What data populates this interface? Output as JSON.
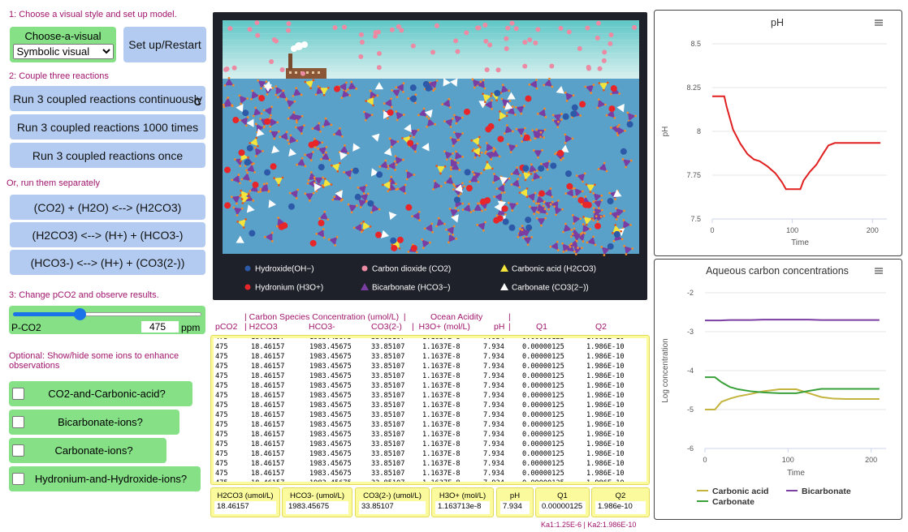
{
  "controls": {
    "step1": "1: Choose a visual style and set up model.",
    "chooser": {
      "label": "Choose-a-visual",
      "value": "Symbolic visual"
    },
    "setup_button": "Set up/Restart",
    "step2": "2: Couple three reactions",
    "coupled_buttons": [
      "Run 3 coupled reactions continuously",
      "Run 3 coupled reactions 1000 times",
      "Run 3 coupled reactions once"
    ],
    "continuous_shortcut": "C",
    "step_separate": "Or, run them separately",
    "reaction_buttons": [
      "(CO2) + (H2O) <--> (H2CO3)",
      "(H2CO3) <--> (H+) + (HCO3-)",
      "(HCO3-) <--> (H+) + (CO3(2-))"
    ],
    "step3": "3: Change pCO2 and observe results.",
    "slider": {
      "label": "P-CO2",
      "value": 475,
      "units": "ppm"
    },
    "optional_note": "Optional:  Show/hide some ions to enhance observations",
    "switches": [
      "CO2-and-Carbonic-acid?",
      "Bicarbonate-ions?",
      "Carbonate-ions?",
      "Hydronium-and-Hydroxide-ions?"
    ]
  },
  "view": {
    "legend": [
      "Hydroxide(OH−)",
      "Carbon dioxide (CO2)",
      "Carbonic acid (H2CO3)",
      "Hydronium (H3O+)",
      "Bicarbonate (HCO3−)",
      "Carbonate (CO3(2−))"
    ]
  },
  "output": {
    "header_line1": [
      "| Carbon Species Concentration (umol/L)  |",
      "Ocean Acidity",
      "|"
    ],
    "header_line2": [
      "pCO2",
      "| H2CO3",
      "HCO3-",
      "CO3(2-)",
      "|  H3O+ (mol/L)",
      "pH",
      "|",
      "Q1",
      "Q2"
    ],
    "rows": [
      [
        "475",
        "18.46157",
        "1983.45675",
        "33.85107",
        "1.1637E-8",
        "7.934",
        "0.00000125",
        "1.986E-10"
      ],
      [
        "475",
        "18.46157",
        "1983.45675",
        "33.85107",
        "1.1637E-8",
        "7.934",
        "0.00000125",
        "1.986E-10"
      ],
      [
        "475",
        "18.46157",
        "1983.45675",
        "33.85107",
        "1.1637E-8",
        "7.934",
        "0.00000125",
        "1.986E-10"
      ],
      [
        "475",
        "18.46157",
        "1983.45675",
        "33.85107",
        "1.1637E-8",
        "7.934",
        "0.00000125",
        "1.986E-10"
      ],
      [
        "475",
        "18.46157",
        "1983.45675",
        "33.85107",
        "1.1637E-8",
        "7.934",
        "0.00000125",
        "1.986E-10"
      ],
      [
        "475",
        "18.46157",
        "1983.45675",
        "33.85107",
        "1.1637E-8",
        "7.934",
        "0.00000125",
        "1.986E-10"
      ],
      [
        "475",
        "18.46157",
        "1983.45675",
        "33.85107",
        "1.1637E-8",
        "7.934",
        "0.00000125",
        "1.986E-10"
      ],
      [
        "475",
        "18.46157",
        "1983.45675",
        "33.85107",
        "1.1637E-8",
        "7.934",
        "0.00000125",
        "1.986E-10"
      ],
      [
        "475",
        "18.46157",
        "1983.45675",
        "33.85107",
        "1.1637E-8",
        "7.934",
        "0.00000125",
        "1.986E-10"
      ],
      [
        "475",
        "18.46157",
        "1983.45675",
        "33.85107",
        "1.1637E-8",
        "7.934",
        "0.00000125",
        "1.986E-10"
      ],
      [
        "475",
        "18.46157",
        "1983.45675",
        "33.85107",
        "1.1637E-8",
        "7.934",
        "0.00000125",
        "1.986E-10"
      ],
      [
        "475",
        "18.46157",
        "1983.45675",
        "33.85107",
        "1.1637E-8",
        "7.934",
        "0.00000125",
        "1.986E-10"
      ],
      [
        "475",
        "18.46157",
        "1983.45675",
        "33.85107",
        "1.1637E-8",
        "7.934",
        "0.00000125",
        "1.986E-10"
      ],
      [
        "475",
        "18.46157",
        "1983.45675",
        "33.85107",
        "1.1637E-8",
        "7.934",
        "0.00000125",
        "1.986E-10"
      ],
      [
        "475",
        "18.46157",
        "1983.45675",
        "33.85107",
        "1.1637E-8",
        "7.934",
        "0.00000125",
        "1.986E-10"
      ],
      [
        "475",
        "18.46157",
        "1983.45675",
        "33.85107",
        "1.1637E-8",
        "7.934",
        "0.00000125",
        "1.986E-10"
      ]
    ],
    "monitors": [
      {
        "label": "H2CO3 (umol/L)",
        "value": "18.46157"
      },
      {
        "label": "HCO3- (umol/L)",
        "value": "1983.45675"
      },
      {
        "label": "CO3(2-) (umol/L)",
        "value": "33.85107"
      },
      {
        "label": "H3O+ (mol/L)",
        "value": "1.163713e-8"
      },
      {
        "label": "pH",
        "value": "7.934"
      },
      {
        "label": "Q1",
        "value": "0.00000125"
      },
      {
        "label": "Q2",
        "value": "1.986e-10"
      }
    ],
    "footnote": "Ka1:1.25E-6 | Ka2:1.986E-10"
  },
  "charts": [
    {
      "type": "line",
      "title": "pH",
      "ylabel": "pH",
      "xlabel": "Time",
      "x": [
        0,
        15,
        18,
        26,
        35,
        44,
        52,
        59,
        69,
        79,
        87,
        92,
        110,
        114,
        122,
        130,
        138,
        145,
        153,
        210
      ],
      "series": [
        {
          "color": "#e02020",
          "values": [
            8.2,
            8.2,
            8.14,
            8.01,
            7.93,
            7.87,
            7.84,
            7.83,
            7.8,
            7.76,
            7.71,
            7.67,
            7.67,
            7.72,
            7.77,
            7.81,
            7.87,
            7.92,
            7.934,
            7.934
          ]
        }
      ],
      "xlim": [
        0,
        218
      ],
      "xticks": [
        0,
        100,
        200
      ],
      "ylim": [
        7.5,
        8.5
      ],
      "yticks": [
        7.5,
        7.75,
        8,
        8.25,
        8.5
      ],
      "grid": true
    },
    {
      "type": "line",
      "title": "Aqueous carbon concentrations",
      "ylabel": "Log concentration",
      "xlabel": "Time",
      "x": [
        0,
        12,
        20,
        30,
        40,
        55,
        70,
        90,
        110,
        125,
        140,
        155,
        170,
        185,
        200,
        210
      ],
      "series": [
        {
          "name": "Carbonic acid",
          "color": "#c4b33c",
          "values": [
            -5,
            -5,
            -4.8,
            -4.72,
            -4.66,
            -4.6,
            -4.53,
            -4.48,
            -4.48,
            -4.58,
            -4.68,
            -4.72,
            -4.73,
            -4.73,
            -4.73,
            -4.73
          ]
        },
        {
          "name": "Bicarbonate",
          "color": "#7b3fa3",
          "values": [
            -2.71,
            -2.71,
            -2.71,
            -2.7,
            -2.7,
            -2.7,
            -2.69,
            -2.69,
            -2.69,
            -2.69,
            -2.7,
            -2.7,
            -2.7,
            -2.7,
            -2.7,
            -2.7
          ]
        },
        {
          "name": "Carbonate",
          "color": "#3aa03a",
          "values": [
            -4.17,
            -4.17,
            -4.3,
            -4.42,
            -4.48,
            -4.53,
            -4.56,
            -4.58,
            -4.58,
            -4.52,
            -4.47,
            -4.47,
            -4.47,
            -4.47,
            -4.47,
            -4.47
          ]
        }
      ],
      "xlim": [
        0,
        218
      ],
      "xticks": [
        0,
        100,
        200
      ],
      "ylim": [
        -6,
        -2
      ],
      "yticks": [
        -6,
        -5,
        -4,
        -3,
        -2
      ],
      "grid": true
    }
  ]
}
